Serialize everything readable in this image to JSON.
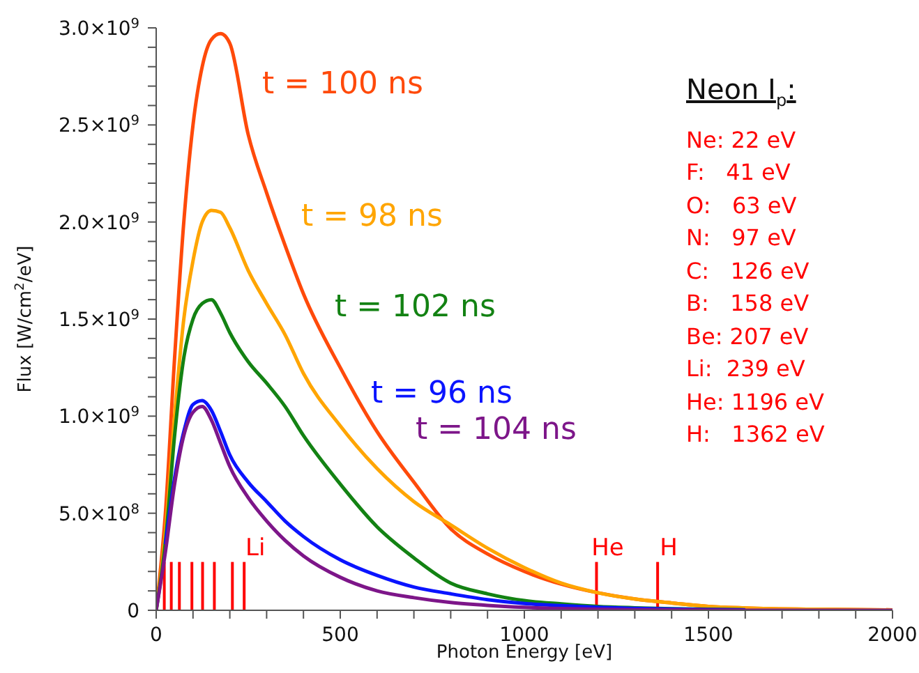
{
  "chart_data": {
    "type": "line",
    "xlabel": "Photon Energy [eV]",
    "ylabel": "Flux [W/cm$^{2}$/eV]",
    "x": [
      0,
      25,
      50,
      75,
      100,
      125,
      150,
      175,
      200,
      250,
      300,
      350,
      400,
      500,
      600,
      700,
      800,
      900,
      1000,
      1100,
      1200,
      1300,
      1400,
      1500,
      1600,
      1800,
      2000
    ],
    "series": [
      {
        "name": "t = 100 ns",
        "color": "#ff4a0a",
        "values": [
          0,
          500000000.0,
          1300000000.0,
          2000000000.0,
          2500000000.0,
          2800000000.0,
          2940000000.0,
          2970000000.0,
          2920000000.0,
          2450000000.0,
          2150000000.0,
          1880000000.0,
          1630000000.0,
          1250000000.0,
          920000000.0,
          660000000.0,
          420000000.0,
          290000000.0,
          200000000.0,
          135000000.0,
          90000000.0,
          58000000.0,
          38000000.0,
          20000000.0,
          12000000.0,
          5000000.0,
          2000000.0
        ]
      },
      {
        "name": "t = 98 ns",
        "color": "#ffa500",
        "values": [
          0,
          400000000.0,
          1000000000.0,
          1500000000.0,
          1800000000.0,
          2000000000.0,
          2060000000.0,
          2050000000.0,
          1970000000.0,
          1750000000.0,
          1580000000.0,
          1420000000.0,
          1220000000.0,
          950000000.0,
          730000000.0,
          560000000.0,
          440000000.0,
          320000000.0,
          220000000.0,
          140000000.0,
          90000000.0,
          58000000.0,
          38000000.0,
          20000000.0,
          12000000.0,
          5000000.0,
          2000000.0
        ]
      },
      {
        "name": "t = 102 ns",
        "color": "#138213",
        "values": [
          0,
          350000000.0,
          900000000.0,
          1300000000.0,
          1500000000.0,
          1580000000.0,
          1600000000.0,
          1530000000.0,
          1430000000.0,
          1280000000.0,
          1170000000.0,
          1050000000.0,
          900000000.0,
          650000000.0,
          430000000.0,
          270000000.0,
          140000000.0,
          85000000.0,
          50000000.0,
          33000000.0,
          20000000.0,
          13000000.0,
          8000000.0,
          5000000.0,
          3000000.0,
          null,
          null
        ]
      },
      {
        "name": "t = 96 ns",
        "color": "#0a14ff",
        "values": [
          null,
          340000000.0,
          680000000.0,
          920000000.0,
          1060000000.0,
          1080000000.0,
          1030000000.0,
          920000000.0,
          800000000.0,
          660000000.0,
          560000000.0,
          460000000.0,
          380000000.0,
          260000000.0,
          180000000.0,
          120000000.0,
          85000000.0,
          55000000.0,
          35000000.0,
          24000000.0,
          15000000.0,
          10000000.0,
          6000000.0,
          4000000.0,
          2000000.0,
          null,
          null
        ]
      },
      {
        "name": "t = 104 ns",
        "color": "#7d1689",
        "values": [
          0,
          300000000.0,
          650000000.0,
          900000000.0,
          1020000000.0,
          1050000000.0,
          980000000.0,
          860000000.0,
          740000000.0,
          580000000.0,
          460000000.0,
          360000000.0,
          280000000.0,
          170000000.0,
          100000000.0,
          65000000.0,
          40000000.0,
          25000000.0,
          15000000.0,
          9000000.0,
          5000000.0,
          3000000.0,
          2000000.0,
          1000000.0,
          0,
          0,
          0
        ]
      }
    ],
    "xlim": [
      0,
      2000
    ],
    "xticks": [
      0,
      {
        "value": 100,
        "label": null
      },
      {
        "value": 200,
        "label": null
      },
      {
        "value": 300,
        "label": null
      },
      {
        "value": 400,
        "label": null
      },
      500,
      {
        "value": 600,
        "label": null
      },
      {
        "value": 700,
        "label": null
      },
      {
        "value": 800,
        "label": null
      },
      {
        "value": 900,
        "label": null
      },
      1000,
      {
        "value": 1100,
        "label": null
      },
      {
        "value": 1200,
        "label": null
      },
      {
        "value": 1300,
        "label": null
      },
      {
        "value": 1400,
        "label": null
      },
      1500,
      {
        "value": 1600,
        "label": null
      },
      {
        "value": 1700,
        "label": null
      },
      {
        "value": 1800,
        "label": null
      },
      {
        "value": 1900,
        "label": null
      },
      2000
    ],
    "ylim": [
      0,
      3000000000.0
    ],
    "yticks": [
      0,
      {
        "value": 100000000.0,
        "label": null
      },
      {
        "value": 200000000.0,
        "label": null
      },
      {
        "value": 300000000.0,
        "label": null
      },
      {
        "value": 400000000.0,
        "label": null
      },
      {
        "value": 500000000.0,
        "label": "5.0×10$^{8}$"
      },
      {
        "value": 600000000.0,
        "label": null
      },
      {
        "value": 700000000.0,
        "label": null
      },
      {
        "value": 800000000.0,
        "label": null
      },
      {
        "value": 900000000.0,
        "label": null
      },
      {
        "value": 1000000000.0,
        "label": "1.0×10$^{9}$"
      },
      {
        "value": 1100000000.0,
        "label": null
      },
      {
        "value": 1200000000.0,
        "label": null
      },
      {
        "value": 1300000000.0,
        "label": null
      },
      {
        "value": 1400000000.0,
        "label": null
      },
      {
        "value": 1500000000.0,
        "label": "1.5×10$^{9}$"
      },
      {
        "value": 1600000000.0,
        "label": null
      },
      {
        "value": 1700000000.0,
        "label": null
      },
      {
        "value": 1800000000.0,
        "label": null
      },
      {
        "value": 1900000000.0,
        "label": null
      },
      {
        "value": 2000000000.0,
        "label": "2.0×10$^{9}$"
      },
      {
        "value": 2100000000.0,
        "label": null
      },
      {
        "value": 2200000000.0,
        "label": null
      },
      {
        "value": 2300000000.0,
        "label": null
      },
      {
        "value": 2400000000.0,
        "label": null
      },
      {
        "value": 2500000000.0,
        "label": "2.5×10$^{9}$"
      },
      {
        "value": 2600000000.0,
        "label": null
      },
      {
        "value": 2700000000.0,
        "label": null
      },
      {
        "value": 2800000000.0,
        "label": null
      },
      {
        "value": 2900000000.0,
        "label": null
      },
      {
        "value": 3000000000.0,
        "label": "3.0×10$^{9}$"
      }
    ],
    "ref_lines": [
      {
        "axis": "x",
        "value": 22,
        "label": null,
        "color": "#ff0000"
      },
      {
        "axis": "x",
        "value": 41,
        "label": null,
        "color": "#ff0000"
      },
      {
        "axis": "x",
        "value": 63,
        "label": null,
        "color": "#ff0000"
      },
      {
        "axis": "x",
        "value": 97,
        "label": null,
        "color": "#ff0000"
      },
      {
        "axis": "x",
        "value": 126,
        "label": null,
        "color": "#ff0000"
      },
      {
        "axis": "x",
        "value": 158,
        "label": null,
        "color": "#ff0000"
      },
      {
        "axis": "x",
        "value": 207,
        "label": null,
        "color": "#ff0000"
      },
      {
        "axis": "x",
        "value": 239,
        "label": "Li",
        "color": "#ff0000"
      },
      {
        "axis": "x",
        "value": 1196,
        "label": "He",
        "color": "#ff0000"
      },
      {
        "axis": "x",
        "value": 1362,
        "label": "H",
        "color": "#ff0000"
      }
    ],
    "annotations": [
      "Neon I$_{p}$:",
      "Ne: 22 eV",
      "F:   41 eV",
      "O:   63 eV",
      "N:   97 eV",
      "C:   126 eV",
      "B:   158 eV",
      "Be: 207 eV",
      "Li:  239 eV",
      "He: 1196 eV",
      "H:   1362 eV"
    ],
    "legend": false,
    "grid": false,
    "marker": "none",
    "line_style": "solid"
  }
}
